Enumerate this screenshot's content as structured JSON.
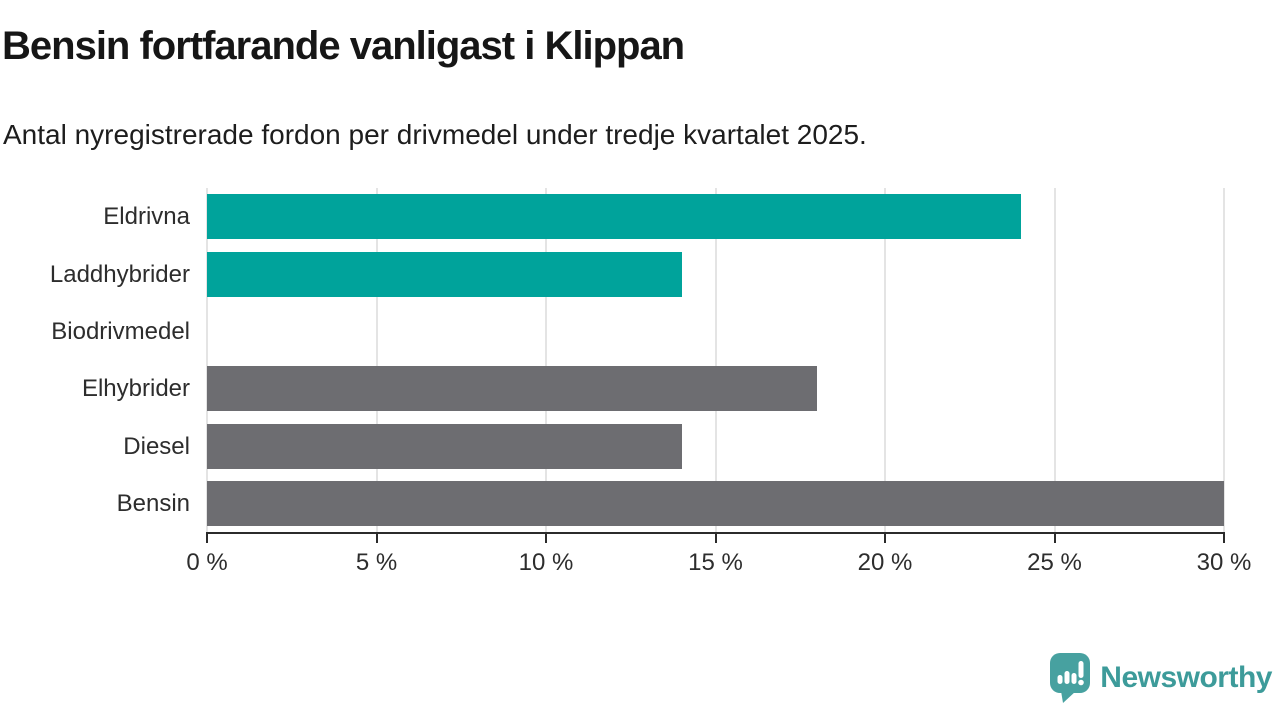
{
  "chart_data": {
    "type": "bar",
    "orientation": "horizontal",
    "title": "Bensin fortfarande vanligast i Klippan",
    "subtitle": "Antal nyregistrerade fordon per drivmedel under tredje kvartalet 2025.",
    "categories": [
      "Eldrivna",
      "Laddhybrider",
      "Biodrivmedel",
      "Elhybrider",
      "Diesel",
      "Bensin"
    ],
    "values": [
      24,
      14,
      0,
      18,
      14,
      30
    ],
    "unit": "%",
    "bar_colors": [
      "#00a39b",
      "#00a39b",
      "#00a39b",
      "#6d6d71",
      "#6d6d71",
      "#6d6d71"
    ],
    "xlim": [
      0,
      30
    ],
    "x_ticks": [
      0,
      5,
      10,
      15,
      20,
      25,
      30
    ],
    "x_tick_labels": [
      "0 %",
      "5 %",
      "10 %",
      "15 %",
      "20 %",
      "25 %",
      "30 %"
    ],
    "xlabel": "",
    "ylabel": "",
    "grid": "vertical",
    "legend": "none"
  },
  "colors": {
    "teal": "#00a39b",
    "gray": "#6d6d71",
    "gridline": "#e4e4e4",
    "axis": "#2b2b2b",
    "logo_icon": "#47a1a0",
    "logo_text": "#3d9b9a"
  },
  "branding": {
    "logo_text": "Newsworthy"
  }
}
